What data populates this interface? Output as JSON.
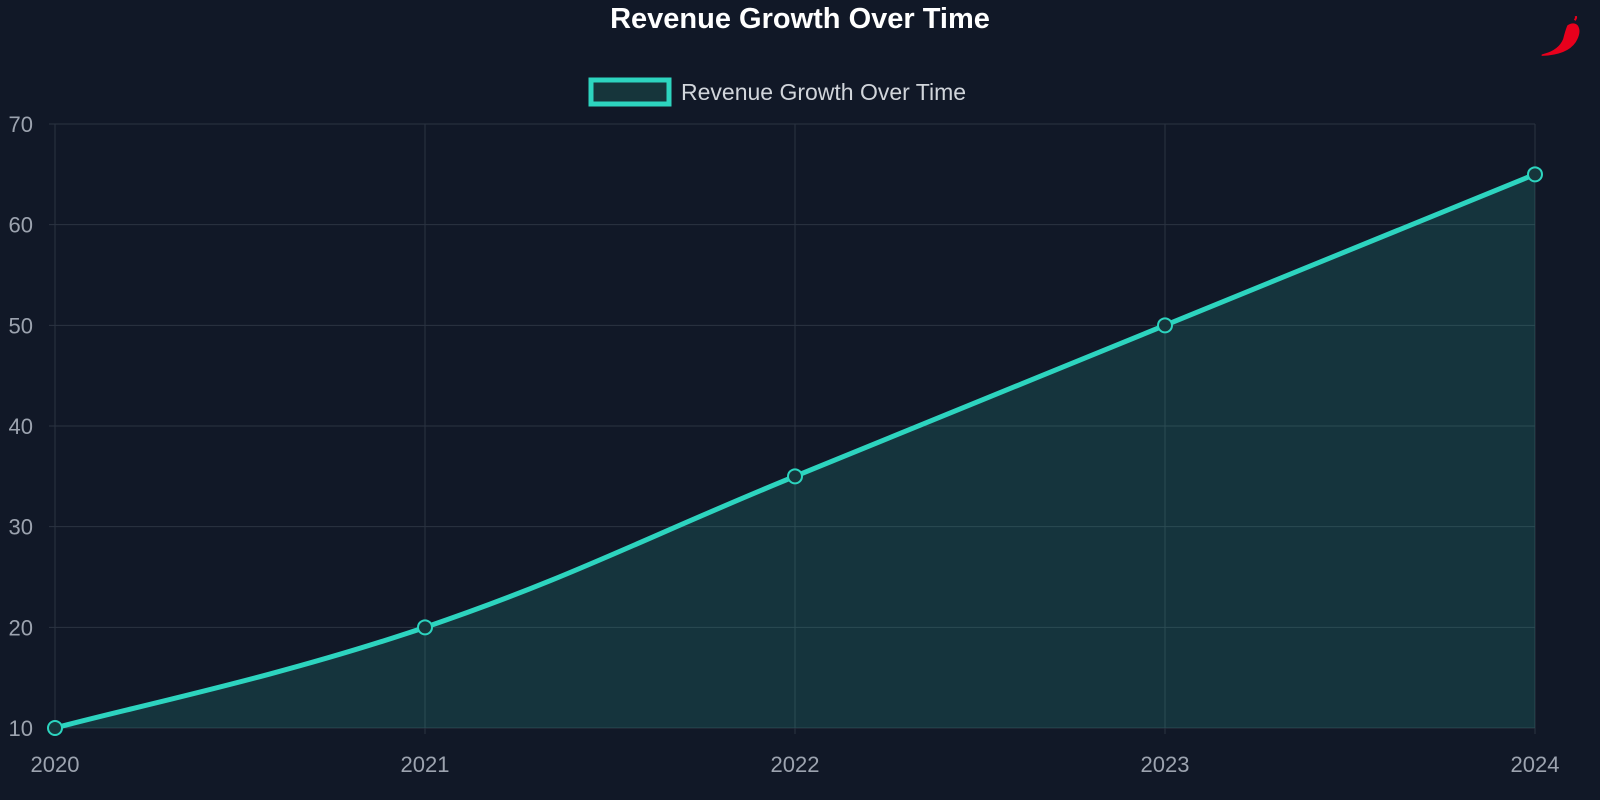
{
  "chart_data": {
    "type": "area",
    "title": "Revenue Growth Over Time",
    "categories": [
      "2020",
      "2021",
      "2022",
      "2023",
      "2024"
    ],
    "series": [
      {
        "name": "Revenue Growth Over Time",
        "values": [
          10,
          20,
          35,
          50,
          65
        ]
      }
    ],
    "ylim": [
      10,
      70
    ],
    "yticks": [
      10,
      20,
      30,
      40,
      50,
      60,
      70
    ],
    "grid": true,
    "legend": "top-center",
    "colors": {
      "background": "#111827",
      "line": "#2dd4bf",
      "fill": "rgba(45,212,191,0.15)",
      "grid": "#2b3342",
      "tick_text": "#9ca3af",
      "legend_text": "#d1d5db"
    }
  },
  "logo": {
    "icon": "chili-pepper-icon",
    "color": "#e8001c"
  }
}
